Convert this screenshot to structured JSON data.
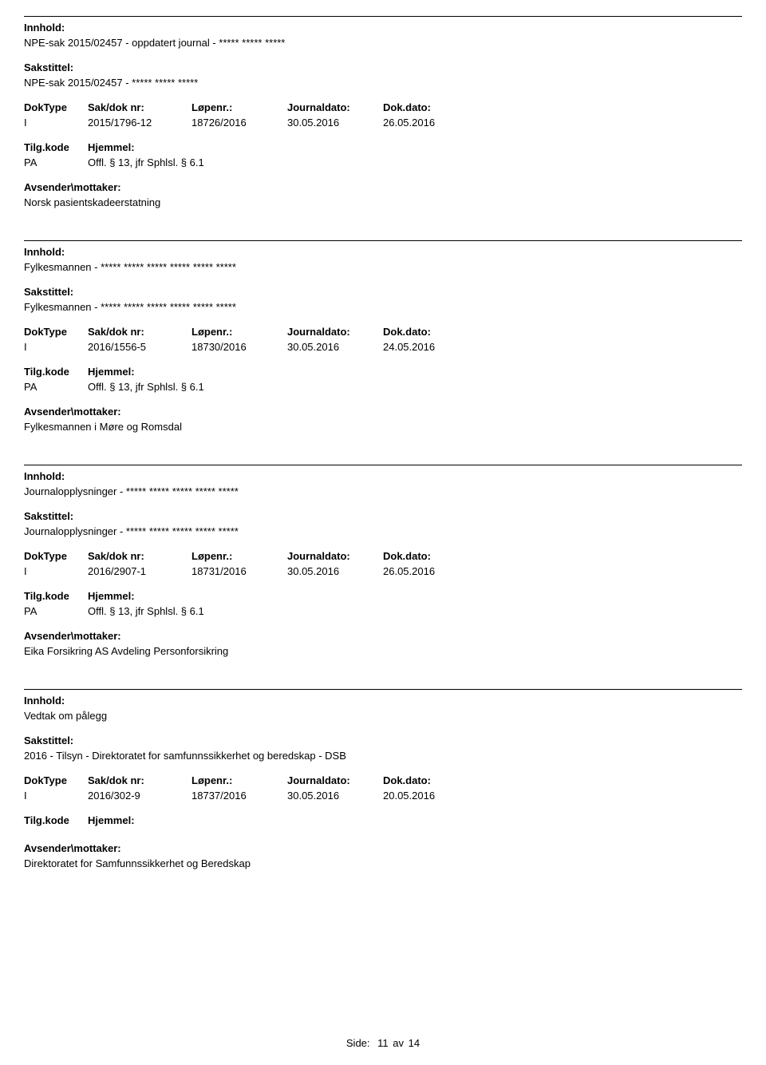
{
  "labels": {
    "innhold": "Innhold:",
    "sakstittel": "Sakstittel:",
    "doktype": "DokType",
    "sakdoknr": "Sak/dok nr:",
    "lopenr": "Løpenr.:",
    "journaldato": "Journaldato:",
    "dokdato": "Dok.dato:",
    "tilgkode": "Tilg.kode",
    "hjemmel": "Hjemmel:",
    "avsender": "Avsender\\mottaker:"
  },
  "entries": [
    {
      "innhold": "NPE-sak 2015/02457 - oppdatert journal -  ***** ***** *****",
      "sakstittel": "NPE-sak 2015/02457 - ***** ***** *****",
      "doktype": "I",
      "sakdoknr": "2015/1796-12",
      "lopenr": "18726/2016",
      "journaldato": "30.05.2016",
      "dokdato": "26.05.2016",
      "tilgkode": "PA",
      "hjemmel": "Offl. § 13, jfr Sphlsl. § 6.1",
      "avsender": "Norsk pasientskadeerstatning"
    },
    {
      "innhold": "Fylkesmannen -  ***** ***** ***** ***** ***** *****",
      "sakstittel": "Fylkesmannen -  ***** ***** ***** ***** ***** *****",
      "doktype": "I",
      "sakdoknr": "2016/1556-5",
      "lopenr": "18730/2016",
      "journaldato": "30.05.2016",
      "dokdato": "24.05.2016",
      "tilgkode": "PA",
      "hjemmel": "Offl. § 13, jfr Sphlsl. § 6.1",
      "avsender": "Fylkesmannen i Møre og Romsdal"
    },
    {
      "innhold": "Journalopplysninger - ***** ***** ***** ***** *****",
      "sakstittel": "Journalopplysninger - ***** ***** ***** ***** *****",
      "doktype": "I",
      "sakdoknr": "2016/2907-1",
      "lopenr": "18731/2016",
      "journaldato": "30.05.2016",
      "dokdato": "26.05.2016",
      "tilgkode": "PA",
      "hjemmel": "Offl. § 13, jfr Sphlsl. § 6.1",
      "avsender": "Eika Forsikring AS Avdeling Personforsikring"
    },
    {
      "innhold": "Vedtak om pålegg",
      "sakstittel": "2016 - Tilsyn - Direktoratet for samfunnssikkerhet og beredskap - DSB",
      "doktype": "I",
      "sakdoknr": "2016/302-9",
      "lopenr": "18737/2016",
      "journaldato": "30.05.2016",
      "dokdato": "20.05.2016",
      "tilgkode": "",
      "hjemmel": "",
      "avsender": "Direktoratet for Samfunnssikkerhet og Beredskap"
    }
  ],
  "footer": {
    "label": "Side:",
    "page": "11",
    "of": "av",
    "total": "14"
  }
}
